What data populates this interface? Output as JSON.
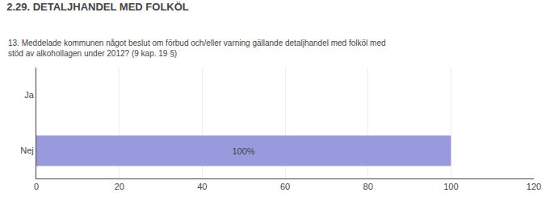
{
  "chart_data": {
    "type": "bar",
    "orientation": "horizontal",
    "title": "2.29. DETALJHANDEL MED FOLKÖL",
    "subtitle": "13. Meddelade kommunen något beslut om förbud och/eller varning gällande detaljhandel med folköl med\nstöd av alkohollagen under 2012? (9 kap. 19 §)",
    "categories": [
      "Nej",
      "Ja"
    ],
    "values": [
      100,
      0
    ],
    "value_labels": [
      "100%",
      null
    ],
    "data_labels": true,
    "color": "#9999dd",
    "xlim": [
      0,
      120
    ],
    "xticks": [
      0,
      20,
      40,
      60,
      80,
      100,
      120
    ],
    "grid": true
  }
}
